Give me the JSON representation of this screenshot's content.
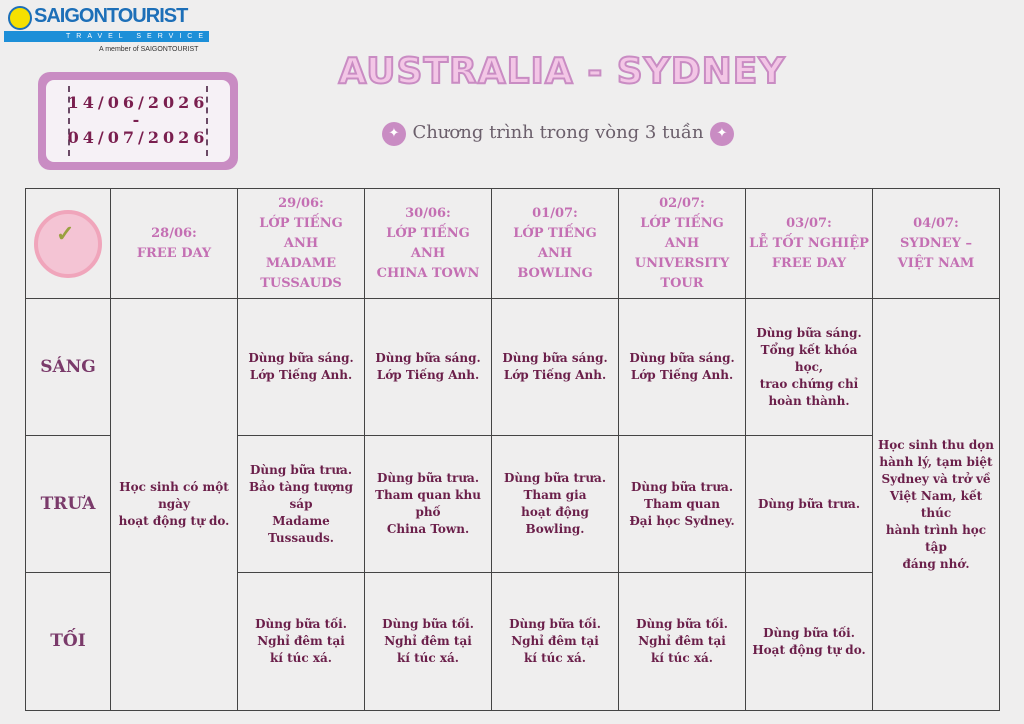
{
  "logo": {
    "brand": "SAIGONTOURIST",
    "tagline": "TRAVEL SERVICE",
    "member": "A member of SAIGONTOURIST"
  },
  "dates": {
    "start": "14/06/2026",
    "sep": "-",
    "end": "04/07/2026"
  },
  "title": "AUSTRALIA - SYDNEY",
  "subtitle": "Chương trình trong vòng 3 tuần",
  "headers": [
    "28/06:\nFREE DAY",
    "29/06:\nLỚP TIẾNG ANH\nMADAME\nTUSSAUDS",
    "30/06:\nLỚP TIẾNG ANH\nCHINA TOWN",
    "01/07:\nLỚP TIẾNG ANH\nBOWLING",
    "02/07:\nLỚP TIẾNG ANH\nUNIVERSITY TOUR",
    "03/07:\nLỄ TỐT NGHIỆP\nFREE DAY",
    "04/07:\nSYDNEY –\nVIỆT NAM"
  ],
  "rows": [
    {
      "label": "SÁNG",
      "cells": [
        "Dùng bữa sáng.\nLớp Tiếng Anh.",
        "Dùng bữa sáng.\nLớp Tiếng Anh.",
        "Dùng bữa sáng.\nLớp Tiếng Anh.",
        "Dùng bữa sáng.\nLớp Tiếng Anh.",
        "Dùng bữa sáng.\nTổng kết khóa học,\ntrao chứng chỉ\nhoàn thành."
      ]
    },
    {
      "label": "TRƯA",
      "cells": [
        "Dùng bữa trưa.\nBảo tàng tượng sáp\nMadame Tussauds.",
        "Dùng bữa trưa.\nTham quan khu phố\nChina Town.",
        "Dùng bữa trưa.\nTham gia\nhoạt động Bowling.",
        "Dùng bữa trưa.\nTham quan\nĐại học Sydney.",
        "Dùng bữa trưa."
      ]
    },
    {
      "label": "TỐI",
      "cells": [
        "Dùng bữa tối.\nNghỉ đêm tại\nkí túc xá.",
        "Dùng bữa tối.\nNghỉ đêm tại\nkí túc xá.",
        "Dùng bữa tối.\nNghỉ đêm tại\nkí túc xá.",
        "Dùng bữa tối.\nNghỉ đêm tại\nkí túc xá.",
        "Dùng bữa tối.\nHoạt động tự do."
      ]
    }
  ],
  "free_day_text": "Học sinh có một ngày\nhoạt động tự do.",
  "last_day_text": "Học sinh thu dọn\nhành lý, tạm biệt\nSydney và trở về\nViệt Nam, kết thúc\nhành trình học tập\nđáng nhớ."
}
